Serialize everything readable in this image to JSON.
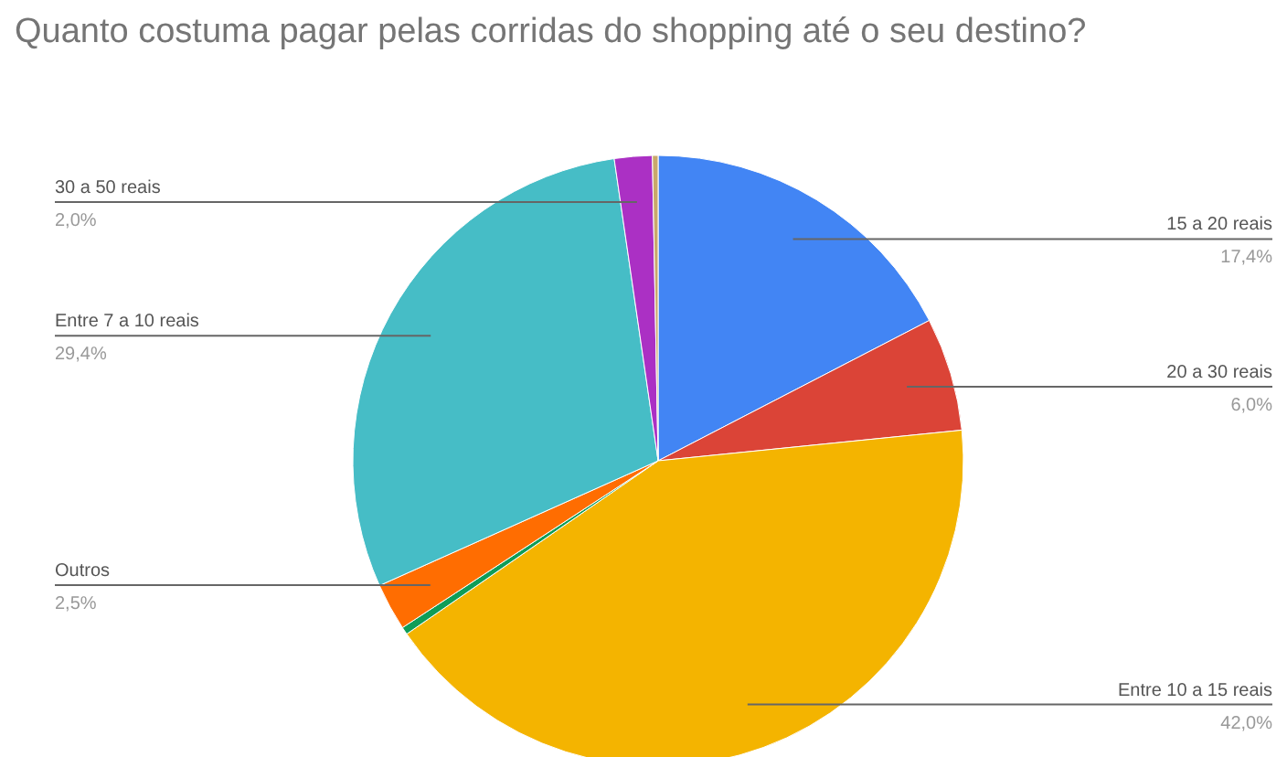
{
  "chart_data": {
    "type": "pie",
    "title": "Quanto costuma pagar pelas corridas do shopping até o seu destino?",
    "categories": [
      "15 a 20 reais",
      "20 a 30 reais",
      "Entre 10 a 15 reais",
      null,
      "Outros",
      "Entre 7 a 10 reais",
      "30 a 50 reais",
      null
    ],
    "values": [
      17.4,
      6.0,
      42.0,
      0.4,
      2.5,
      29.4,
      2.0,
      0.3
    ],
    "colors": [
      "#4285f4",
      "#db4437",
      "#f4b400",
      "#0f9d58",
      "#ff6d01",
      "#46bdc6",
      "#ab30c4",
      "#c9a86a"
    ],
    "value_labels": [
      "17,4%",
      "6,0%",
      "42,0%",
      null,
      "2,5%",
      "29,4%",
      "2,0%",
      null
    ]
  }
}
